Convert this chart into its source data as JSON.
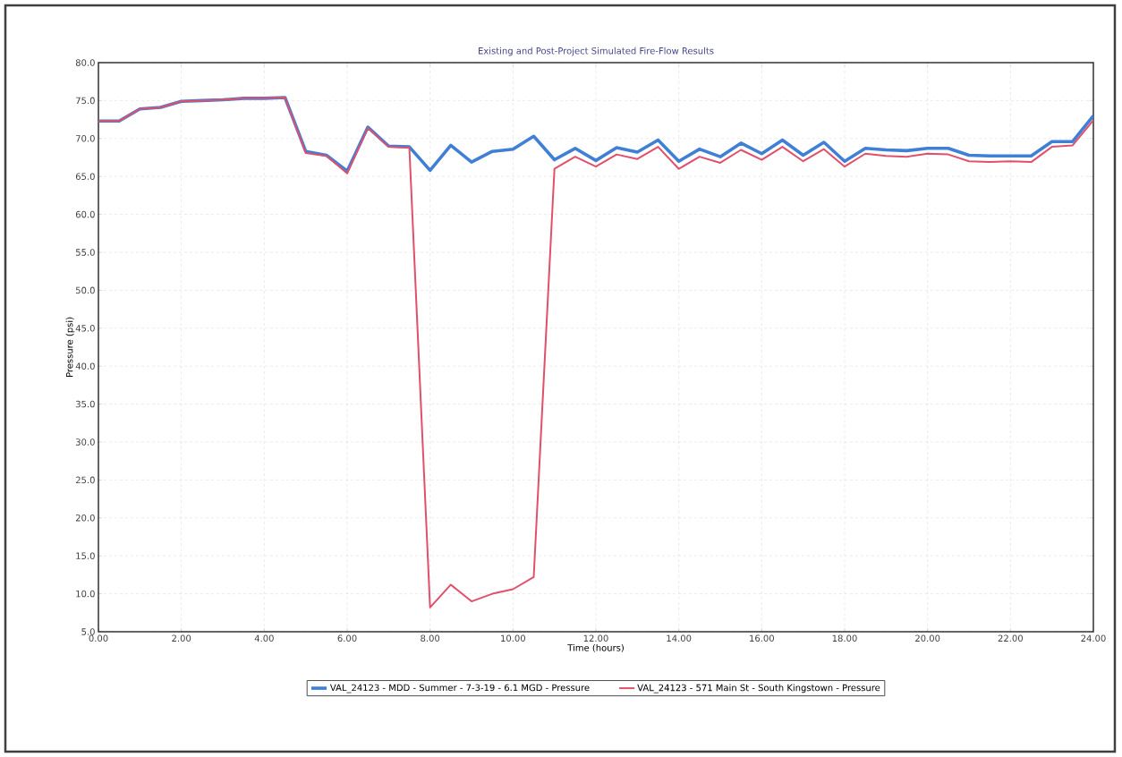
{
  "chart_data": {
    "type": "line",
    "title": "Existing and Post-Project Simulated Fire-Flow Results",
    "xlabel": "Time (hours)",
    "ylabel": "Pressure (psi)",
    "x": [
      0,
      0.5,
      1,
      1.5,
      2,
      2.5,
      3,
      3.5,
      4,
      4.5,
      5,
      5.5,
      6,
      6.5,
      7,
      7.5,
      8,
      8.5,
      9,
      9.5,
      10,
      10.5,
      11,
      11.5,
      12,
      12.5,
      13,
      13.5,
      14,
      14.5,
      15,
      15.5,
      16,
      16.5,
      17,
      17.5,
      18,
      18.5,
      19,
      19.5,
      20,
      20.5,
      21,
      21.5,
      22,
      22.5,
      23,
      23.5,
      24
    ],
    "series": [
      {
        "name": "VAL_24123 - MDD - Summer - 7-3-19 - 6.1 MGD - Pressure",
        "color": "#3f7fd6",
        "values": [
          72.3,
          72.3,
          73.9,
          74.1,
          74.9,
          75.0,
          75.1,
          75.3,
          75.3,
          75.4,
          68.3,
          67.8,
          65.7,
          71.5,
          69.0,
          68.9,
          65.8,
          69.1,
          66.9,
          68.3,
          68.6,
          70.3,
          67.2,
          68.7,
          67.1,
          68.8,
          68.2,
          69.8,
          67.0,
          68.6,
          67.6,
          69.4,
          68.0,
          69.8,
          67.8,
          69.5,
          67.0,
          68.7,
          68.5,
          68.4,
          68.7,
          68.7,
          67.8,
          67.7,
          67.7,
          67.7,
          69.6,
          69.6,
          73.0
        ]
      },
      {
        "name": "VAL_24123 - 571 Main St - South Kingstown - Pressure",
        "color": "#e0506a",
        "values": [
          72.3,
          72.3,
          73.9,
          74.1,
          74.9,
          75.0,
          75.1,
          75.3,
          75.3,
          75.4,
          68.1,
          67.7,
          65.4,
          71.4,
          68.9,
          68.8,
          8.2,
          11.2,
          9.0,
          10.0,
          10.6,
          12.2,
          66.0,
          67.6,
          66.3,
          67.9,
          67.3,
          68.9,
          66.0,
          67.6,
          66.8,
          68.5,
          67.2,
          68.9,
          67.0,
          68.6,
          66.3,
          68.0,
          67.7,
          67.6,
          68.0,
          67.9,
          67.0,
          66.9,
          67.0,
          66.9,
          68.9,
          69.1,
          72.4
        ]
      }
    ],
    "xlim": [
      0,
      24
    ],
    "ylim": [
      5,
      80
    ],
    "xticks": [
      {
        "value": 0,
        "label": "0.00"
      },
      {
        "value": 2,
        "label": "2.00"
      },
      {
        "value": 4,
        "label": "4.00"
      },
      {
        "value": 6,
        "label": "6.00"
      },
      {
        "value": 8,
        "label": "8.00"
      },
      {
        "value": 10,
        "label": "10.00"
      },
      {
        "value": 12,
        "label": "12.00"
      },
      {
        "value": 14,
        "label": "14.00"
      },
      {
        "value": 16,
        "label": "16.00"
      },
      {
        "value": 18,
        "label": "18.00"
      },
      {
        "value": 20,
        "label": "20.00"
      },
      {
        "value": 22,
        "label": "22.00"
      },
      {
        "value": 24,
        "label": "24.00"
      }
    ],
    "yticks": [
      {
        "value": 5,
        "label": "5.0"
      },
      {
        "value": 10,
        "label": "10.0"
      },
      {
        "value": 15,
        "label": "15.0"
      },
      {
        "value": 20,
        "label": "20.0"
      },
      {
        "value": 25,
        "label": "25.0"
      },
      {
        "value": 30,
        "label": "30.0"
      },
      {
        "value": 35,
        "label": "35.0"
      },
      {
        "value": 40,
        "label": "40.0"
      },
      {
        "value": 45,
        "label": "45.0"
      },
      {
        "value": 50,
        "label": "50.0"
      },
      {
        "value": 55,
        "label": "55.0"
      },
      {
        "value": 60,
        "label": "60.0"
      },
      {
        "value": 65,
        "label": "65.0"
      },
      {
        "value": 70,
        "label": "70.0"
      },
      {
        "value": 75,
        "label": "75.0"
      },
      {
        "value": 80,
        "label": "80.0"
      }
    ],
    "grid": true,
    "legend": "bottom",
    "marker": "none",
    "line_style": "solid"
  }
}
